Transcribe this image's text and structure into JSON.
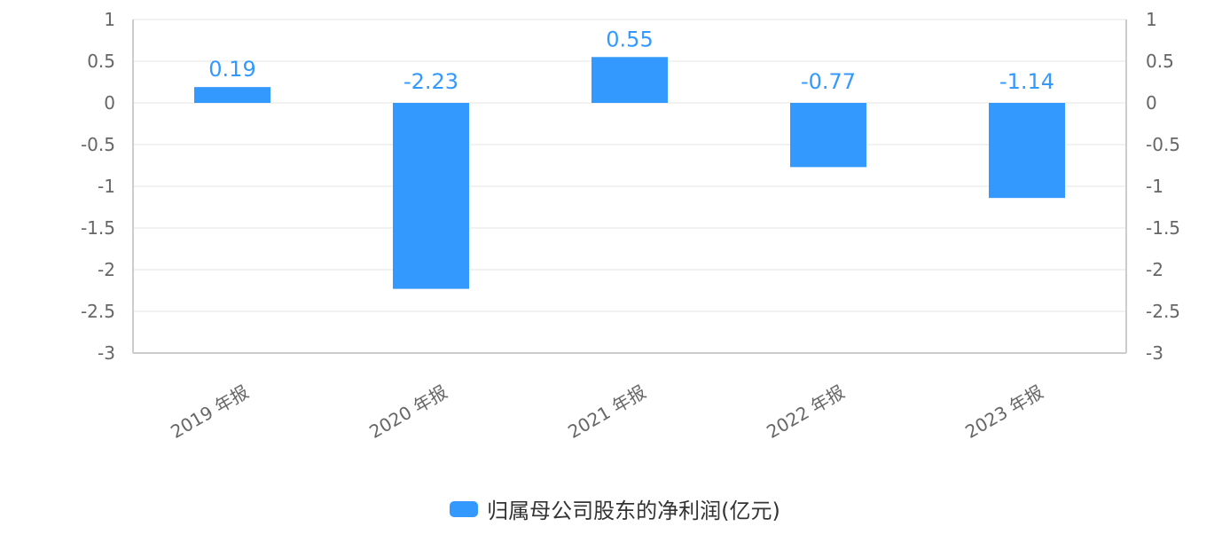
{
  "colors": {
    "bar": "#3399ff",
    "grid": "#e6e6e6",
    "axis": "#cccccc",
    "tick_text": "#666666",
    "data_label": "#3399ff"
  },
  "legend": {
    "label": "归属母公司股东的净利润(亿元)",
    "position": "bottom-center"
  },
  "chart_data": {
    "type": "bar",
    "categories": [
      "2019 年报",
      "2020 年报",
      "2021 年报",
      "2022 年报",
      "2023 年报"
    ],
    "series": [
      {
        "name": "归属母公司股东的净利润(亿元)",
        "values": [
          0.19,
          -2.23,
          0.55,
          -0.77,
          -1.14
        ]
      }
    ],
    "data_labels": [
      "0.19",
      "-2.23",
      "0.55",
      "-0.77",
      "-1.14"
    ],
    "ylim": [
      -3,
      1
    ],
    "yticks": [
      1,
      0.5,
      0,
      -0.5,
      -1,
      -1.5,
      -2,
      -2.5,
      -3
    ],
    "ytick_labels": [
      "1",
      "0.5",
      "0",
      "-0.5",
      "-1",
      "-1.5",
      "-2",
      "-2.5",
      "-3"
    ],
    "grid": true,
    "secondary_axis": true
  }
}
